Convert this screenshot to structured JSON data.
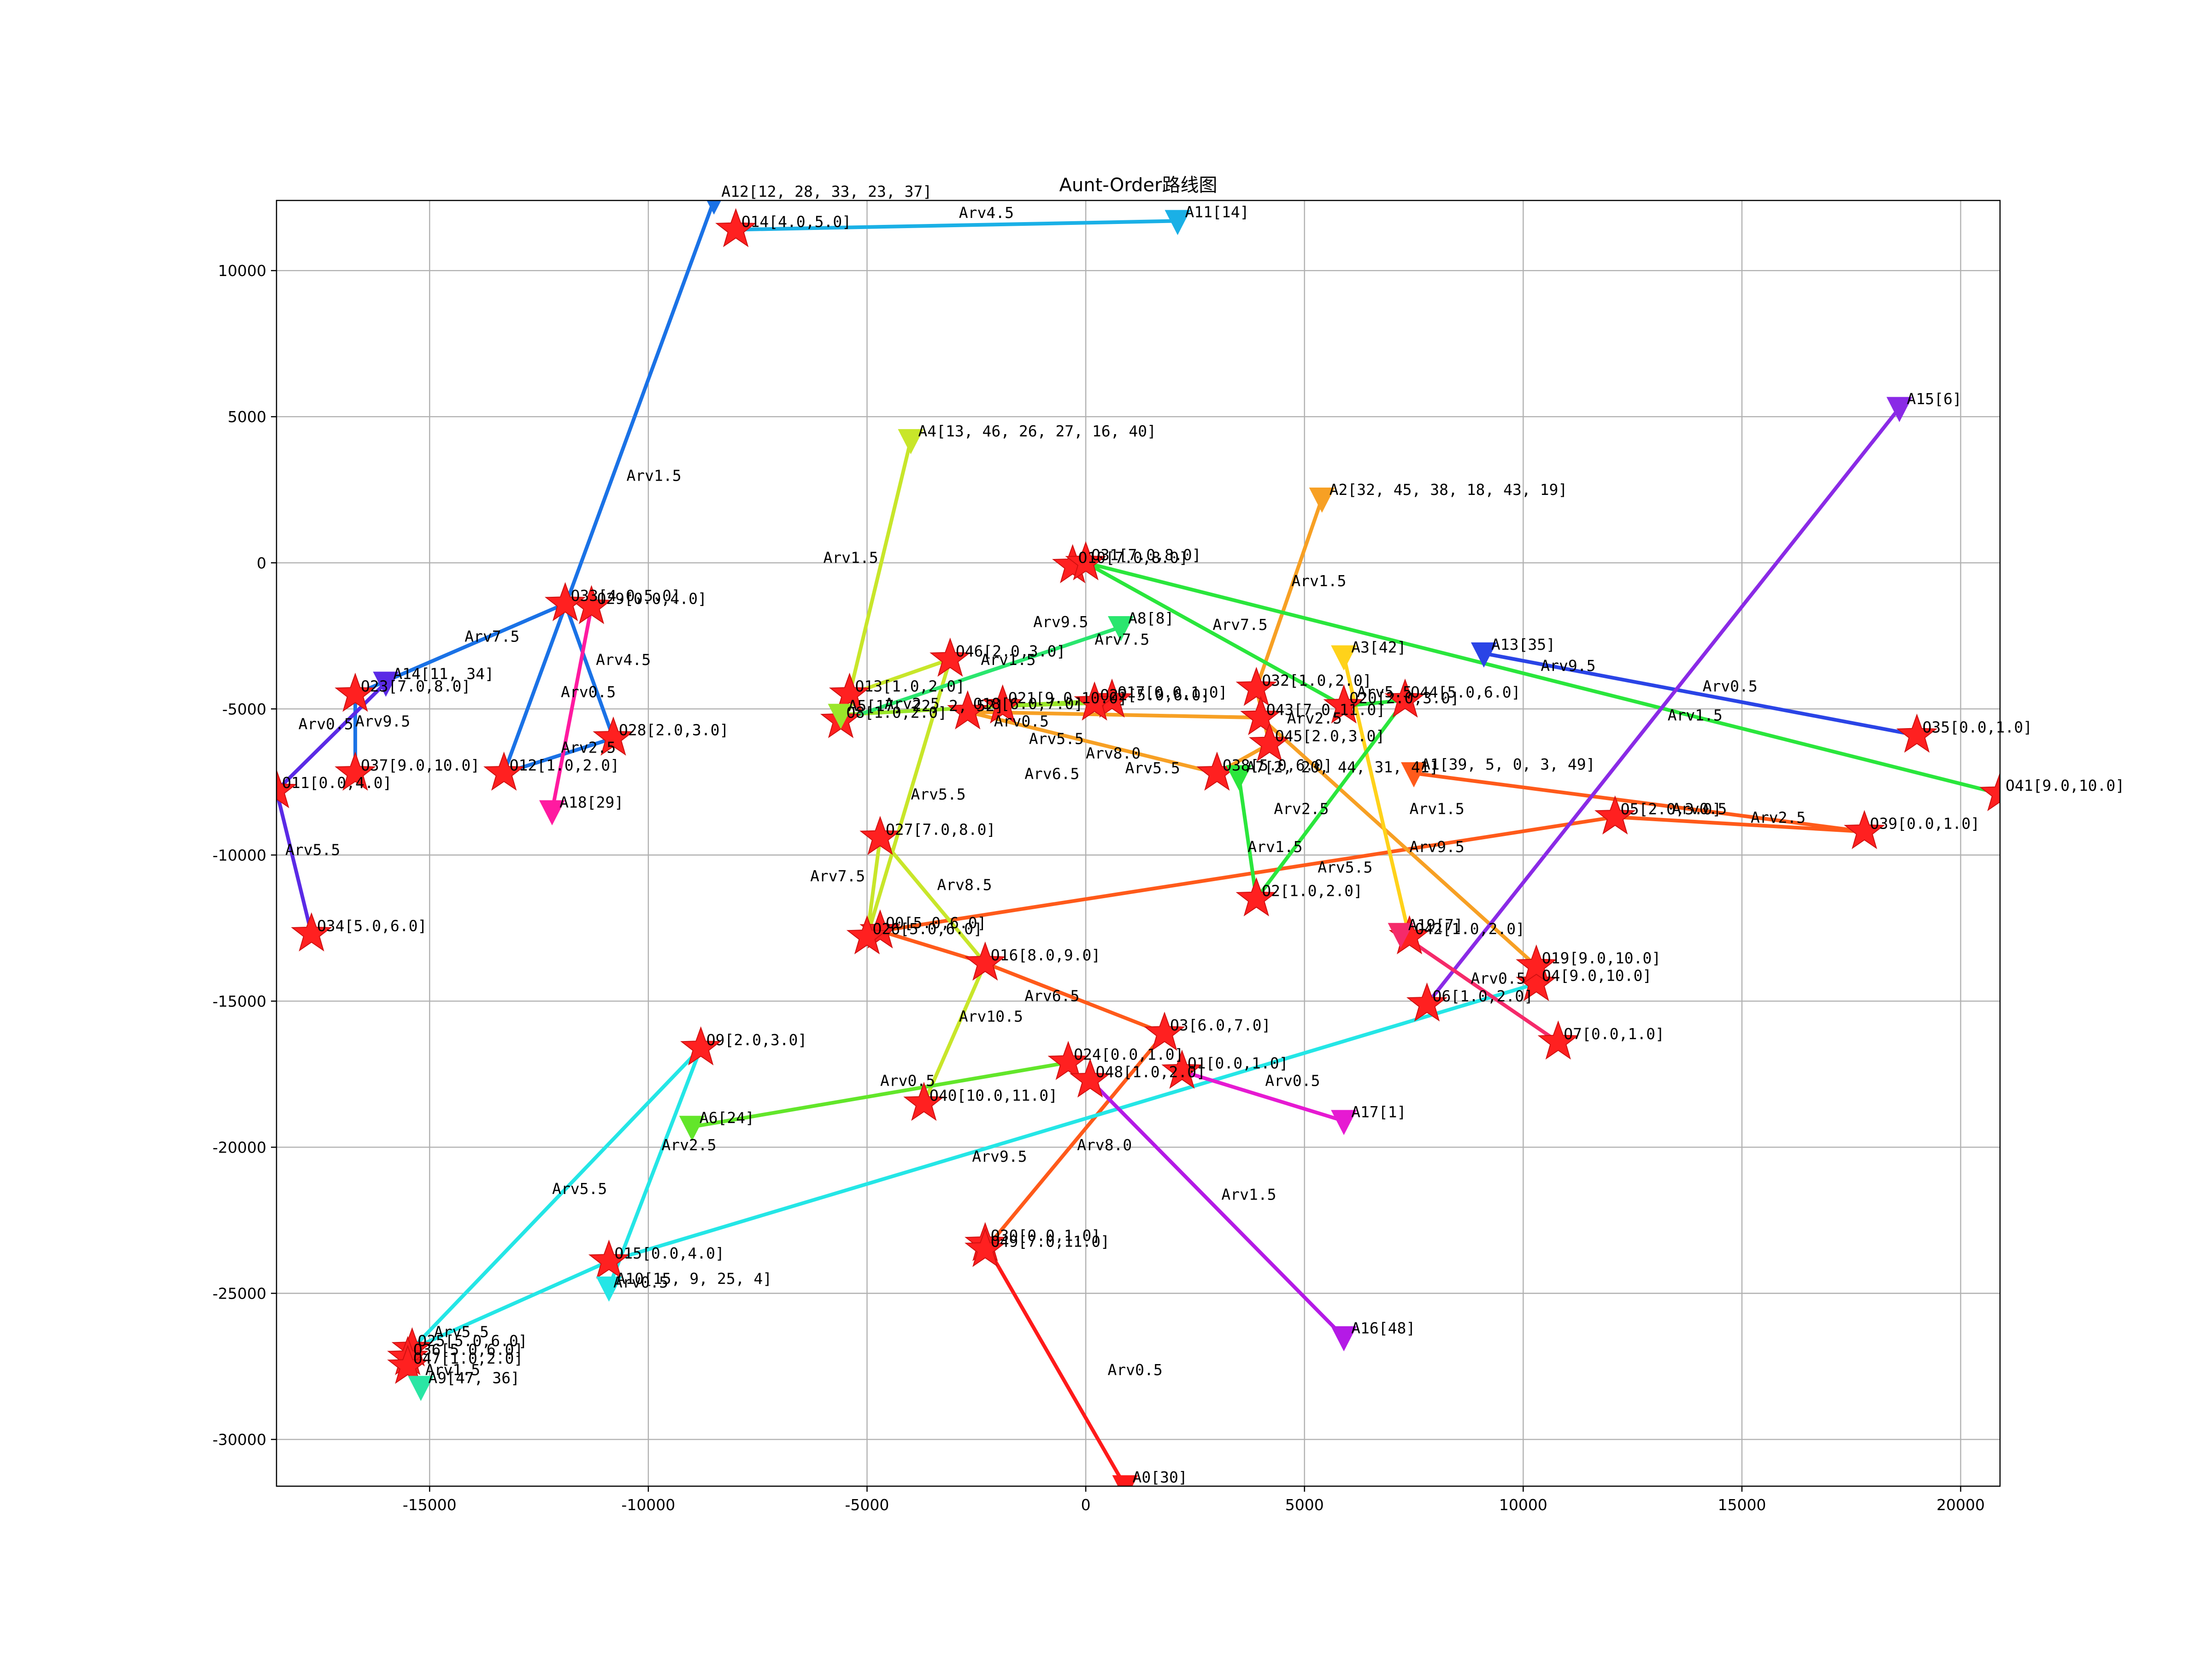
{
  "chart_data": {
    "type": "scatter",
    "title": "Aunt-Order路线图",
    "xlabel": "",
    "ylabel": "",
    "xlim": [
      -18500,
      20900
    ],
    "ylim": [
      -31600,
      12400
    ],
    "grid": true,
    "x_ticks": [
      -15000,
      -10000,
      -5000,
      0,
      5000,
      10000,
      15000,
      20000
    ],
    "y_ticks": [
      10000,
      5000,
      0,
      -5000,
      -10000,
      -15000,
      -20000,
      -25000,
      -30000
    ],
    "aunts": [
      {
        "label": "A0[30]",
        "x": 900,
        "y": -31600,
        "color": "#ff1a1a"
      },
      {
        "label": "A1[39, 5, 0, 3, 49]",
        "x": 7500,
        "y": -7200,
        "color": "#ff5a1a"
      },
      {
        "label": "A2[32, 45, 38, 18, 43, 19]",
        "x": 5400,
        "y": 2200,
        "color": "#f7a024"
      },
      {
        "label": "A3[42]",
        "x": 5900,
        "y": -3200,
        "color": "#ffd21a"
      },
      {
        "label": "A4[13, 46, 26, 27, 16, 40]",
        "x": -4000,
        "y": 4200,
        "color": "#c8e62a"
      },
      {
        "label": "A5[17, 22, 2, 52]",
        "x": -5600,
        "y": -5200,
        "color": "#9ae62a"
      },
      {
        "label": "A6[24]",
        "x": -9000,
        "y": -19300,
        "color": "#62e62a"
      },
      {
        "label": "A7[2, 20, 44, 31, 41]",
        "x": 3500,
        "y": -7300,
        "color": "#2ae63c"
      },
      {
        "label": "A8[8]",
        "x": 800,
        "y": -2200,
        "color": "#2ae66e"
      },
      {
        "label": "A9[47, 36]",
        "x": -15200,
        "y": -28200,
        "color": "#2ae6a4"
      },
      {
        "label": "A10[15, 9, 25, 4]",
        "x": -10900,
        "y": -24800,
        "color": "#24e6e6"
      },
      {
        "label": "A11[14]",
        "x": 2100,
        "y": 11700,
        "color": "#1ab0e6"
      },
      {
        "label": "A12[12, 28, 33, 23, 37]",
        "x": -8500,
        "y": 12400,
        "color": "#1a72e6"
      },
      {
        "label": "A13[35]",
        "x": 9100,
        "y": -3100,
        "color": "#2a44e6"
      },
      {
        "label": "A14[11, 34]",
        "x": -16000,
        "y": -4100,
        "color": "#5a2ae6"
      },
      {
        "label": "A15[6]",
        "x": 18600,
        "y": 5300,
        "color": "#8a2ae6"
      },
      {
        "label": "A16[48]",
        "x": 5900,
        "y": -26500,
        "color": "#b41ae6"
      },
      {
        "label": "A17[1]",
        "x": 5900,
        "y": -19100,
        "color": "#e61ad2"
      },
      {
        "label": "A18[29]",
        "x": -12200,
        "y": -8500,
        "color": "#ff1aa0"
      },
      {
        "label": "A19[7]",
        "x": 7200,
        "y": -12700,
        "color": "#f52a6a"
      }
    ],
    "orders": [
      {
        "label": "O0[5.0,6.0]",
        "x": -4700,
        "y": -12600
      },
      {
        "label": "O1[0.0,1.0]",
        "x": 2200,
        "y": -17400
      },
      {
        "label": "O2[1.0,2.0]",
        "x": 3900,
        "y": -11500
      },
      {
        "label": "O3[6.0,7.0]",
        "x": 1800,
        "y": -16100
      },
      {
        "label": "O4[9.0,10.0]",
        "x": 10300,
        "y": -14400
      },
      {
        "label": "O5[2.0,3.0]",
        "x": 12100,
        "y": -8700
      },
      {
        "label": "O6[1.0,2.0]",
        "x": 7800,
        "y": -15100
      },
      {
        "label": "O7[0.0,1.0]",
        "x": 10800,
        "y": -16400
      },
      {
        "label": "O8[1.0,2.0]",
        "x": -5600,
        "y": -5400
      },
      {
        "label": "O9[2.0,3.0]",
        "x": -8800,
        "y": -16600
      },
      {
        "label": "O10[7.0,8.0]",
        "x": -300,
        "y": -100
      },
      {
        "label": "O11[0.0,4.0]",
        "x": -18500,
        "y": -7800
      },
      {
        "label": "O12[1.0,2.0]",
        "x": -13300,
        "y": -7200
      },
      {
        "label": "O13[1.0,2.0]",
        "x": -5400,
        "y": -4500
      },
      {
        "label": "O14[4.0,5.0]",
        "x": -8000,
        "y": 11400
      },
      {
        "label": "O15[0.0,4.0]",
        "x": -10900,
        "y": -23900
      },
      {
        "label": "O16[8.0,9.0]",
        "x": -2300,
        "y": -13700
      },
      {
        "label": "O17[0.0,1.0]",
        "x": 600,
        "y": -4700
      },
      {
        "label": "O18[6.0,7.0]",
        "x": -2700,
        "y": -5100
      },
      {
        "label": "O19[9.0,10.0]",
        "x": 10300,
        "y": -13800
      },
      {
        "label": "O20[2.0,3.0]",
        "x": 5900,
        "y": -4900
      },
      {
        "label": "O21[9.0,10.0]",
        "x": -1900,
        "y": -4900
      },
      {
        "label": "O22[5.0,6.0]",
        "x": 200,
        "y": -4800
      },
      {
        "label": "O23[7.0,8.0]",
        "x": -16700,
        "y": -4500
      },
      {
        "label": "O24[0.0,1.0]",
        "x": -400,
        "y": -17100
      },
      {
        "label": "O25[5.0,6.0]",
        "x": -15400,
        "y": -26900
      },
      {
        "label": "O26[5.0,6.0]",
        "x": -5000,
        "y": -12800
      },
      {
        "label": "O27[7.0,8.0]",
        "x": -4700,
        "y": -9400
      },
      {
        "label": "O28[2.0,3.0]",
        "x": -10800,
        "y": -6000
      },
      {
        "label": "O29[0.0,4.0]",
        "x": -11300,
        "y": -1500
      },
      {
        "label": "O30[0.0,1.0]",
        "x": -2300,
        "y": -23300
      },
      {
        "label": "O31[7.0,8.0]",
        "x": 0,
        "y": 0
      },
      {
        "label": "O32[1.0,2.0]",
        "x": 3900,
        "y": -4300
      },
      {
        "label": "O33[4.0,5.0]",
        "x": -11900,
        "y": -1400
      },
      {
        "label": "O34[5.0,6.0]",
        "x": -17700,
        "y": -12700
      },
      {
        "label": "O35[0.0,1.0]",
        "x": 19000,
        "y": -5900
      },
      {
        "label": "O36[5.0,6.0]",
        "x": -15500,
        "y": -27200
      },
      {
        "label": "O37[9.0,10.0]",
        "x": -16700,
        "y": -7200
      },
      {
        "label": "O38[5.0,6.0]",
        "x": 3000,
        "y": -7200
      },
      {
        "label": "O39[0.0,1.0]",
        "x": 17800,
        "y": -9200
      },
      {
        "label": "O40[10.0,11.0]",
        "x": -3700,
        "y": -18500
      },
      {
        "label": "O41[9.0,10.0]",
        "x": 20900,
        "y": -7900
      },
      {
        "label": "O42[1.0,2.0]",
        "x": 7400,
        "y": -12800
      },
      {
        "label": "O43[7.0,11.0]",
        "x": 4000,
        "y": -5300
      },
      {
        "label": "O44[5.0,6.0]",
        "x": 7300,
        "y": -4700
      },
      {
        "label": "O45[2.0,3.0]",
        "x": 4200,
        "y": -6200
      },
      {
        "label": "O46[2.0,3.0]",
        "x": -3100,
        "y": -3300
      },
      {
        "label": "O47[1.0,2.0]",
        "x": -15500,
        "y": -27500
      },
      {
        "label": "O48[1.0,2.0]",
        "x": 100,
        "y": -17700
      },
      {
        "label": "O49[7.0,11.0]",
        "x": -2300,
        "y": -23500
      }
    ],
    "routes": [
      {
        "aunt": "A0[30]",
        "color": "#ff1a1a",
        "points": [
          [
            900,
            -31600
          ],
          [
            -2300,
            -23300
          ]
        ]
      },
      {
        "aunt": "A1[39, 5, 0, 3, 49]",
        "color": "#ff5a1a",
        "points": [
          [
            7500,
            -7200
          ],
          [
            17800,
            -9200
          ],
          [
            12100,
            -8700
          ],
          [
            -4700,
            -12600
          ],
          [
            -2300,
            -13700
          ],
          [
            1800,
            -16100
          ],
          [
            -2300,
            -23500
          ]
        ]
      },
      {
        "aunt": "A2[32, 45, 38, 18, 43, 19]",
        "color": "#f7a024",
        "points": [
          [
            5400,
            2200
          ],
          [
            3900,
            -4300
          ],
          [
            4200,
            -6200
          ],
          [
            3000,
            -7200
          ],
          [
            -2700,
            -5100
          ],
          [
            4000,
            -5300
          ],
          [
            10300,
            -13800
          ]
        ]
      },
      {
        "aunt": "A3[42]",
        "color": "#ffd21a",
        "points": [
          [
            5900,
            -3200
          ],
          [
            7400,
            -12800
          ]
        ]
      },
      {
        "aunt": "A4[13, 46, 26, 27, 16, 40]",
        "color": "#c8e62a",
        "points": [
          [
            -4000,
            4200
          ],
          [
            -5400,
            -4500
          ],
          [
            -3100,
            -3300
          ],
          [
            -5000,
            -12800
          ],
          [
            -4700,
            -9400
          ],
          [
            -2300,
            -13700
          ],
          [
            -3700,
            -18500
          ]
        ]
      },
      {
        "aunt": "A5[17, 22, 2, 52]",
        "color": "#9ae62a",
        "points": [
          [
            -5600,
            -5200
          ],
          [
            600,
            -4700
          ],
          [
            200,
            -4800
          ],
          [
            -1900,
            -4900
          ]
        ]
      },
      {
        "aunt": "A6[24]",
        "color": "#62e62a",
        "points": [
          [
            -9000,
            -19300
          ],
          [
            -400,
            -17100
          ]
        ]
      },
      {
        "aunt": "A7[2, 20, 44, 31, 41]",
        "color": "#2ae63c",
        "points": [
          [
            3500,
            -7300
          ],
          [
            3900,
            -11500
          ],
          [
            7300,
            -4700
          ],
          [
            5900,
            -4900
          ],
          [
            0,
            0
          ],
          [
            20900,
            -7900
          ]
        ]
      },
      {
        "aunt": "A8[8]",
        "color": "#2ae66e",
        "points": [
          [
            800,
            -2200
          ],
          [
            -5600,
            -5400
          ]
        ]
      },
      {
        "aunt": "A9[47, 36]",
        "color": "#2ae6a4",
        "points": [
          [
            -15200,
            -28200
          ],
          [
            -15500,
            -27500
          ],
          [
            -15500,
            -27200
          ]
        ]
      },
      {
        "aunt": "A10[15, 9, 25, 4]",
        "color": "#24e6e6",
        "points": [
          [
            -10900,
            -24800
          ],
          [
            -8800,
            -16600
          ],
          [
            -15400,
            -26900
          ],
          [
            -10900,
            -23900
          ],
          [
            10300,
            -14400
          ]
        ]
      },
      {
        "aunt": "A11[14]",
        "color": "#1ab0e6",
        "points": [
          [
            2100,
            11700
          ],
          [
            -8000,
            11400
          ]
        ]
      },
      {
        "aunt": "A12[12, 28, 33, 23, 37]",
        "color": "#1a72e6",
        "points": [
          [
            -8500,
            12400
          ],
          [
            -13300,
            -7200
          ],
          [
            -10800,
            -6000
          ],
          [
            -11900,
            -1400
          ],
          [
            -16700,
            -4500
          ],
          [
            -16700,
            -7200
          ]
        ]
      },
      {
        "aunt": "A13[35]",
        "color": "#2a44e6",
        "points": [
          [
            9100,
            -3100
          ],
          [
            19000,
            -5900
          ]
        ]
      },
      {
        "aunt": "A14[11, 34]",
        "color": "#5a2ae6",
        "points": [
          [
            -16000,
            -4100
          ],
          [
            -18500,
            -7800
          ],
          [
            -17700,
            -12700
          ]
        ]
      },
      {
        "aunt": "A15[6]",
        "color": "#8a2ae6",
        "points": [
          [
            18600,
            5300
          ],
          [
            7800,
            -15100
          ]
        ]
      },
      {
        "aunt": "A16[48]",
        "color": "#b41ae6",
        "points": [
          [
            5900,
            -26500
          ],
          [
            100,
            -17700
          ]
        ]
      },
      {
        "aunt": "A17[1]",
        "color": "#e61ad2",
        "points": [
          [
            5900,
            -19100
          ],
          [
            2200,
            -17400
          ]
        ]
      },
      {
        "aunt": "A18[29]",
        "color": "#ff1aa0",
        "points": [
          [
            -12200,
            -8500
          ],
          [
            -11300,
            -1500
          ]
        ]
      },
      {
        "aunt": "A19[7]",
        "color": "#f52a6a",
        "points": [
          [
            7200,
            -12700
          ],
          [
            10800,
            -16400
          ]
        ]
      }
    ],
    "arv_labels": [
      {
        "text": "Arv0.5",
        "x": 500,
        "y": -27800
      },
      {
        "text": "Arv4.5",
        "x": -2900,
        "y": 11800
      },
      {
        "text": "Arv1.5",
        "x": -10500,
        "y": 2800
      },
      {
        "text": "Arv1.5",
        "x": -6000,
        "y": 0
      },
      {
        "text": "Arv1.5",
        "x": 4700,
        "y": -800
      },
      {
        "text": "Arv9.5",
        "x": -1200,
        "y": -2200
      },
      {
        "text": "Arv7.5",
        "x": 200,
        "y": -2800
      },
      {
        "text": "Arv7.5",
        "x": 2900,
        "y": -2300
      },
      {
        "text": "Arv1.5",
        "x": -2400,
        "y": -3500
      },
      {
        "text": "Arv2.5",
        "x": -4600,
        "y": -5000
      },
      {
        "text": "Arv0.5",
        "x": -2100,
        "y": -5600
      },
      {
        "text": "Arv5.5",
        "x": -1300,
        "y": -6200
      },
      {
        "text": "Arv8.0",
        "x": 0,
        "y": -6700
      },
      {
        "text": "Arv6.5",
        "x": -1400,
        "y": -7400
      },
      {
        "text": "Arv5.5",
        "x": 900,
        "y": -7200
      },
      {
        "text": "Arv2.5",
        "x": 4600,
        "y": -5500
      },
      {
        "text": "Arv5.5",
        "x": 6200,
        "y": -4600
      },
      {
        "text": "Arv9.5",
        "x": 10400,
        "y": -3700
      },
      {
        "text": "Arv0.5",
        "x": 14100,
        "y": -4400
      },
      {
        "text": "Arv1.5",
        "x": 13300,
        "y": -5400
      },
      {
        "text": "Arv1.5",
        "x": 7400,
        "y": -8600
      },
      {
        "text": "Arv0.5",
        "x": 13400,
        "y": -8600
      },
      {
        "text": "Arv2.5",
        "x": 15200,
        "y": -8900
      },
      {
        "text": "Arv2.5",
        "x": 4300,
        "y": -8600
      },
      {
        "text": "Arv9.5",
        "x": 7400,
        "y": -9900
      },
      {
        "text": "Arv1.5",
        "x": 3700,
        "y": -9900
      },
      {
        "text": "Arv5.5",
        "x": 5300,
        "y": -10600
      },
      {
        "text": "Arv5.5",
        "x": -4000,
        "y": -8100
      },
      {
        "text": "Arv7.5",
        "x": -6300,
        "y": -10900
      },
      {
        "text": "Arv8.5",
        "x": -3400,
        "y": -11200
      },
      {
        "text": "Arv6.5",
        "x": -1400,
        "y": -15000
      },
      {
        "text": "Arv10.5",
        "x": -2900,
        "y": -15700
      },
      {
        "text": "Arv0.5",
        "x": -4700,
        "y": -17900
      },
      {
        "text": "Arv0.5",
        "x": 4100,
        "y": -17900
      },
      {
        "text": "Arv8.0",
        "x": -200,
        "y": -20100
      },
      {
        "text": "Arv9.5",
        "x": -2600,
        "y": -20500
      },
      {
        "text": "Arv1.5",
        "x": 3100,
        "y": -21800
      },
      {
        "text": "Arv0.5",
        "x": 8800,
        "y": -14400
      },
      {
        "text": "Arv2.5",
        "x": -9700,
        "y": -20100
      },
      {
        "text": "Arv5.5",
        "x": -12200,
        "y": -21600
      },
      {
        "text": "Arv0.5",
        "x": -10800,
        "y": -24800
      },
      {
        "text": "Arv5.5",
        "x": -14900,
        "y": -26500
      },
      {
        "text": "Arv1.5",
        "x": -15100,
        "y": -27800
      },
      {
        "text": "Arv7.5",
        "x": -14200,
        "y": -2700
      },
      {
        "text": "Arv4.5",
        "x": -11200,
        "y": -3500
      },
      {
        "text": "Arv0.5",
        "x": -12000,
        "y": -4600
      },
      {
        "text": "Arv2.5",
        "x": -12000,
        "y": -6500
      },
      {
        "text": "Arv9.5",
        "x": -16700,
        "y": -5600
      },
      {
        "text": "Arv0.5",
        "x": -18000,
        "y": -5700
      },
      {
        "text": "Arv5.5",
        "x": -18300,
        "y": -10000
      }
    ]
  }
}
